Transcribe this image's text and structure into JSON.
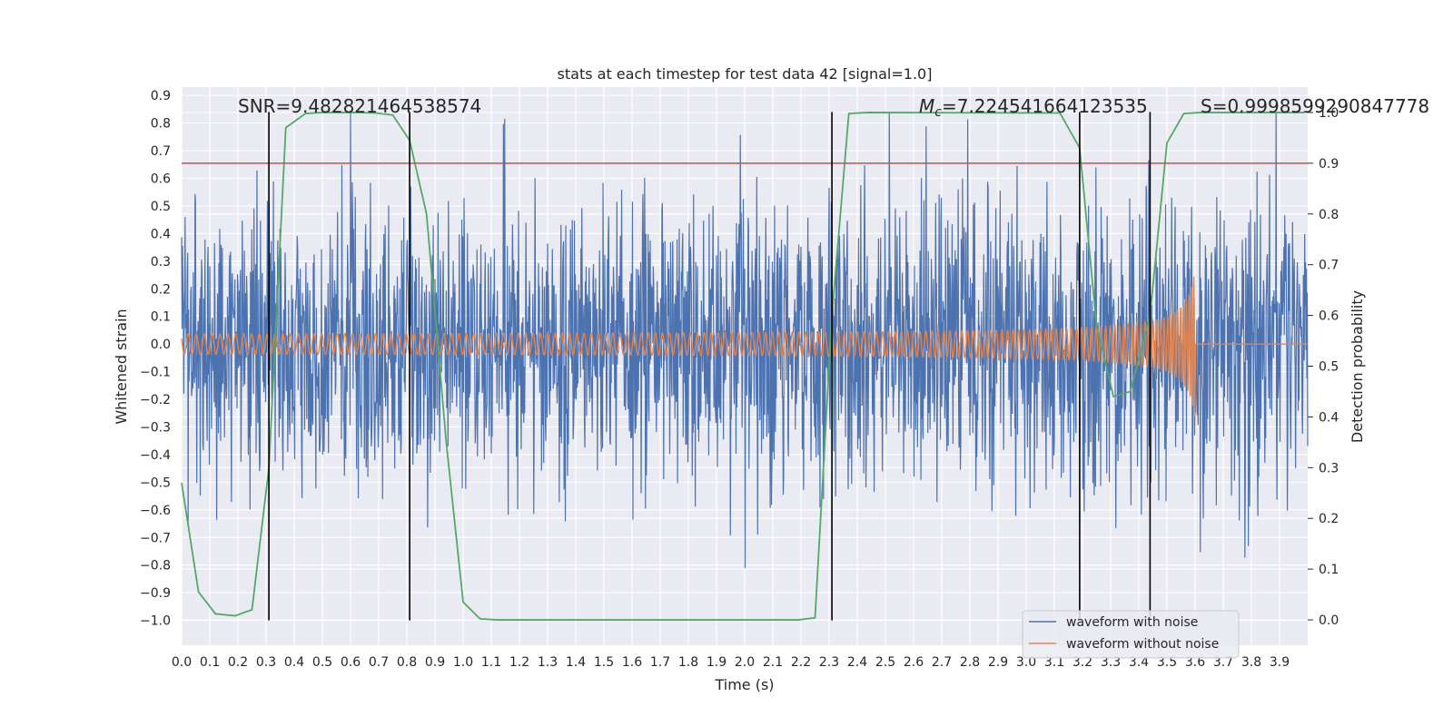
{
  "chart_data": {
    "type": "line",
    "title": "stats at each timestep for test data 42 [signal=1.0]",
    "xlabel": "Time (s)",
    "ylabel": "Whitened strain",
    "y2label": "Detection probability",
    "xlim": [
      0.0,
      4.0
    ],
    "ylim": [
      -1.09,
      0.93
    ],
    "y2lim": [
      -0.05,
      1.05
    ],
    "x_ticks": [
      0.0,
      0.1,
      0.2,
      0.3,
      0.4,
      0.5,
      0.6,
      0.7,
      0.8,
      0.9,
      1.0,
      1.1,
      1.2,
      1.3,
      1.4,
      1.5,
      1.6,
      1.7,
      1.8,
      1.9,
      2.0,
      2.1,
      2.2,
      2.3,
      2.4,
      2.5,
      2.6,
      2.7,
      2.8,
      2.9,
      3.0,
      3.1,
      3.2,
      3.3,
      3.4,
      3.5,
      3.6,
      3.7,
      3.8,
      3.9
    ],
    "y_ticks": [
      0.9,
      0.8,
      0.7,
      0.6,
      0.5,
      0.4,
      0.3,
      0.2,
      0.1,
      0.0,
      -0.1,
      -0.2,
      -0.3,
      -0.4,
      -0.5,
      -0.6,
      -0.7,
      -0.8,
      -0.9,
      -1.0
    ],
    "y2_ticks": [
      1.0,
      0.9,
      0.8,
      0.7,
      0.6,
      0.5,
      0.4,
      0.3,
      0.2,
      0.1,
      0.0
    ],
    "grid": true,
    "legend_position": "lower-right",
    "legend": [
      "waveform with noise",
      "waveform without noise"
    ],
    "annotations": {
      "snr": "SNR=9.482821464538574",
      "mc_symbol": "M",
      "mc_sub": "c",
      "mc_value": "=7.224541664123535",
      "s": "S=0.9998599290847778"
    },
    "threshold_line": {
      "axis": "y2",
      "value": 0.9,
      "color": "#c44e52"
    },
    "vertical_lines": [
      0.31,
      0.81,
      2.31,
      3.19,
      3.44
    ],
    "vertical_line_range": [
      -1.0,
      0.84
    ],
    "series": [
      {
        "name": "waveform with noise",
        "color": "#4c72b0",
        "noise_sigma": 0.26,
        "noise_max": 0.84,
        "noise_min": -1.0
      },
      {
        "name": "waveform without noise",
        "color": "#dd8452",
        "model": "chirp",
        "t_merge": 3.6,
        "amplitude_start": 0.03,
        "amplitude_peak": 0.28,
        "cycles_per_second_start": 18,
        "cycles_per_second_end": 140
      },
      {
        "name": "detection probability",
        "axis": "y2",
        "color": "#55a868",
        "x": [
          0.0,
          0.06,
          0.12,
          0.19,
          0.25,
          0.31,
          0.37,
          0.44,
          0.5,
          0.56,
          0.62,
          0.69,
          0.75,
          0.81,
          0.87,
          0.94,
          1.0,
          1.06,
          1.12,
          2.19,
          2.25,
          2.31,
          2.37,
          2.44,
          3.12,
          3.19,
          3.25,
          3.31,
          3.37,
          3.44,
          3.5,
          3.56,
          3.62,
          3.69,
          3.94,
          3.99
        ],
        "y": [
          0.27,
          0.055,
          0.012,
          0.008,
          0.02,
          0.3,
          0.97,
          0.998,
          1.0,
          1.0,
          1.0,
          0.999,
          0.995,
          0.945,
          0.8,
          0.35,
          0.035,
          0.002,
          0.0,
          0.0,
          0.004,
          0.6,
          0.998,
          1.0,
          0.999,
          0.93,
          0.58,
          0.44,
          0.45,
          0.6,
          0.94,
          0.998,
          1.0,
          1.0,
          1.0,
          1.0
        ]
      }
    ]
  }
}
